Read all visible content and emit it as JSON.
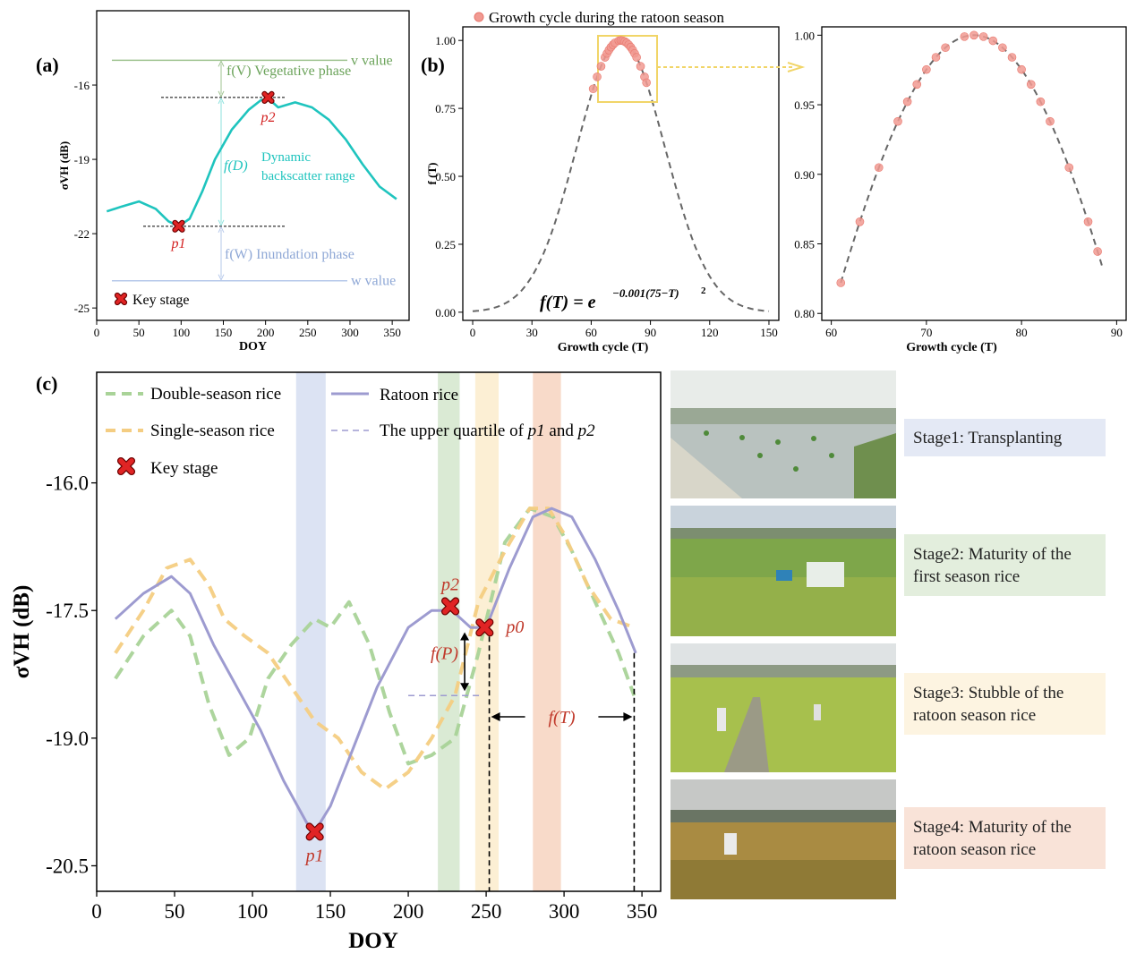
{
  "chart_data": [
    {
      "panel": "(a)",
      "type": "line",
      "xlabel": "DOY",
      "ylabel": "σVH (dB)",
      "xlim": [
        0,
        370
      ],
      "ylim": [
        -25.5,
        -13
      ],
      "xticks": [
        0,
        50,
        100,
        150,
        200,
        250,
        300,
        350
      ],
      "yticks": [
        -16,
        -19,
        -22,
        -25
      ],
      "series": [
        {
          "color": "#1fc4be",
          "x": [
            12,
            30,
            50,
            70,
            85,
            97,
            110,
            125,
            140,
            160,
            180,
            195,
            205,
            215,
            235,
            255,
            275,
            295,
            315,
            335,
            355
          ],
          "y": [
            -21.1,
            -20.9,
            -20.7,
            -21.0,
            -21.5,
            -21.7,
            -21.4,
            -20.3,
            -19.0,
            -17.8,
            -17.0,
            -16.6,
            -16.6,
            -16.9,
            -16.7,
            -16.9,
            -17.4,
            -18.2,
            -19.2,
            -20.1,
            -20.6
          ]
        }
      ],
      "key_points": [
        {
          "label": "p1",
          "x": 97,
          "y": -21.7
        },
        {
          "label": "p2",
          "x": 203,
          "y": -16.5
        }
      ],
      "reference_lines": [
        {
          "label": "v value",
          "y": -15.0
        },
        {
          "label": "w value",
          "y": -23.9
        }
      ],
      "annotations": [
        {
          "label": "f(V) Vegetative phase"
        },
        {
          "label_l1": "f(D)",
          "label_l2": "Dynamic",
          "label_l3": "backscatter range"
        },
        {
          "label": "f(W) Inundation phase"
        }
      ],
      "legend": {
        "key_stage": "Key stage"
      }
    },
    {
      "panel": "(b)",
      "type": "scatter",
      "xlabel": "Growth cycle (T)",
      "ylabel": "f (T)",
      "xlim": [
        -5,
        155
      ],
      "ylim": [
        -0.03,
        1.05
      ],
      "xticks": [
        0,
        30,
        60,
        90,
        120,
        150
      ],
      "yticks": [
        0.0,
        0.25,
        0.5,
        0.75,
        1.0
      ],
      "legend": "Growth cycle during the ratoon season",
      "equation_lhs": "f(T) = e",
      "equation_exp": "−0.001(75−T)",
      "equation_sq": "2",
      "curve": {
        "a": 0.001,
        "center": 75
      },
      "points_T": [
        61,
        63,
        65,
        67,
        68,
        69,
        70,
        71,
        72,
        74,
        75,
        76,
        77,
        78,
        79,
        80,
        81,
        82,
        83,
        85,
        87,
        88
      ],
      "zoom": {
        "xlabel": "Growth cycle (T)",
        "xlim": [
          59,
          91
        ],
        "ylim": [
          0.795,
          1.006
        ],
        "xticks": [
          60,
          70,
          80,
          90
        ],
        "yticks": [
          0.8,
          0.85,
          0.9,
          0.95,
          1.0
        ]
      }
    },
    {
      "panel": "(c)",
      "type": "line",
      "xlabel": "DOY",
      "ylabel": "σVH (dB)",
      "xlim": [
        0,
        362
      ],
      "ylim": [
        -20.8,
        -14.7
      ],
      "xticks": [
        0,
        50,
        100,
        150,
        200,
        250,
        300,
        350
      ],
      "yticks": [
        -16.0,
        -17.5,
        -19.0,
        -20.5
      ],
      "series": [
        {
          "name": "Double-season rice",
          "color": "#a9d398",
          "dash": true,
          "x": [
            12,
            30,
            48,
            60,
            72,
            85,
            98,
            110,
            125,
            140,
            150,
            162,
            175,
            188,
            200,
            215,
            230,
            245,
            262,
            278,
            293,
            305,
            320,
            335,
            345
          ],
          "y": [
            -18.3,
            -17.8,
            -17.5,
            -17.8,
            -18.6,
            -19.2,
            -19.0,
            -18.3,
            -17.9,
            -17.6,
            -17.7,
            -17.4,
            -17.9,
            -18.7,
            -19.3,
            -19.2,
            -19.0,
            -18.0,
            -16.7,
            -16.3,
            -16.4,
            -16.8,
            -17.4,
            -18.0,
            -18.5
          ]
        },
        {
          "name": "Single-season rice",
          "color": "#f4cd82",
          "dash": true,
          "x": [
            12,
            30,
            45,
            60,
            72,
            82,
            95,
            110,
            125,
            140,
            155,
            170,
            185,
            200,
            215,
            230,
            245,
            262,
            278,
            290,
            300,
            315,
            330,
            345
          ],
          "y": [
            -18.0,
            -17.5,
            -17.0,
            -16.9,
            -17.2,
            -17.6,
            -17.8,
            -18.0,
            -18.4,
            -18.8,
            -19.0,
            -19.4,
            -19.6,
            -19.4,
            -19.0,
            -18.5,
            -17.4,
            -16.8,
            -16.3,
            -16.3,
            -16.6,
            -17.2,
            -17.6,
            -17.7
          ]
        },
        {
          "name": "Ratoon rice",
          "color": "#9d9bd0",
          "dash": false,
          "x": [
            12,
            30,
            48,
            60,
            75,
            90,
            105,
            120,
            135,
            140,
            150,
            165,
            180,
            200,
            215,
            228,
            240,
            250,
            265,
            280,
            292,
            305,
            320,
            335,
            346
          ],
          "y": [
            -17.6,
            -17.3,
            -17.1,
            -17.3,
            -17.9,
            -18.4,
            -18.9,
            -19.5,
            -20.0,
            -20.1,
            -19.8,
            -19.1,
            -18.4,
            -17.7,
            -17.5,
            -17.5,
            -17.7,
            -17.7,
            -17.0,
            -16.4,
            -16.3,
            -16.4,
            -16.9,
            -17.5,
            -18.0
          ]
        }
      ],
      "quartile_line": {
        "label_prefix": "The upper quartile of",
        "label_p1": "p1",
        "label_and": "and",
        "label_p2": "p2",
        "x": [
          200,
          248
        ],
        "y": -18.5
      },
      "key_points": [
        {
          "label": "p1",
          "x": 140,
          "y": -20.1
        },
        {
          "label": "p2",
          "x": 227,
          "y": -17.45
        },
        {
          "label": "p0",
          "x": 249,
          "y": -17.7
        }
      ],
      "stage_bands": [
        {
          "x0": 128,
          "x1": 147,
          "color": "#d6def1"
        },
        {
          "x0": 219,
          "x1": 233,
          "color": "#d4e6cc"
        },
        {
          "x0": 243,
          "x1": 258,
          "color": "#fbeccc"
        },
        {
          "x0": 280,
          "x1": 298,
          "color": "#f7d4c0"
        }
      ],
      "annotations": {
        "f_p": "f(P)",
        "f_t": "f(T)",
        "t_start": 252,
        "t_end": 345
      },
      "legend": {
        "key_stage": "Key stage"
      }
    }
  ],
  "stages": [
    {
      "label": "Stage1: Transplanting",
      "color": "#e4e9f5"
    },
    {
      "label": "Stage2: Maturity of the first season rice",
      "color": "#e3eedd"
    },
    {
      "label": "Stage3: Stubble of the ratoon season rice",
      "color": "#fdf4e1"
    },
    {
      "label": "Stage4: Maturity of the ratoon season rice",
      "color": "#f9e3d8"
    }
  ]
}
